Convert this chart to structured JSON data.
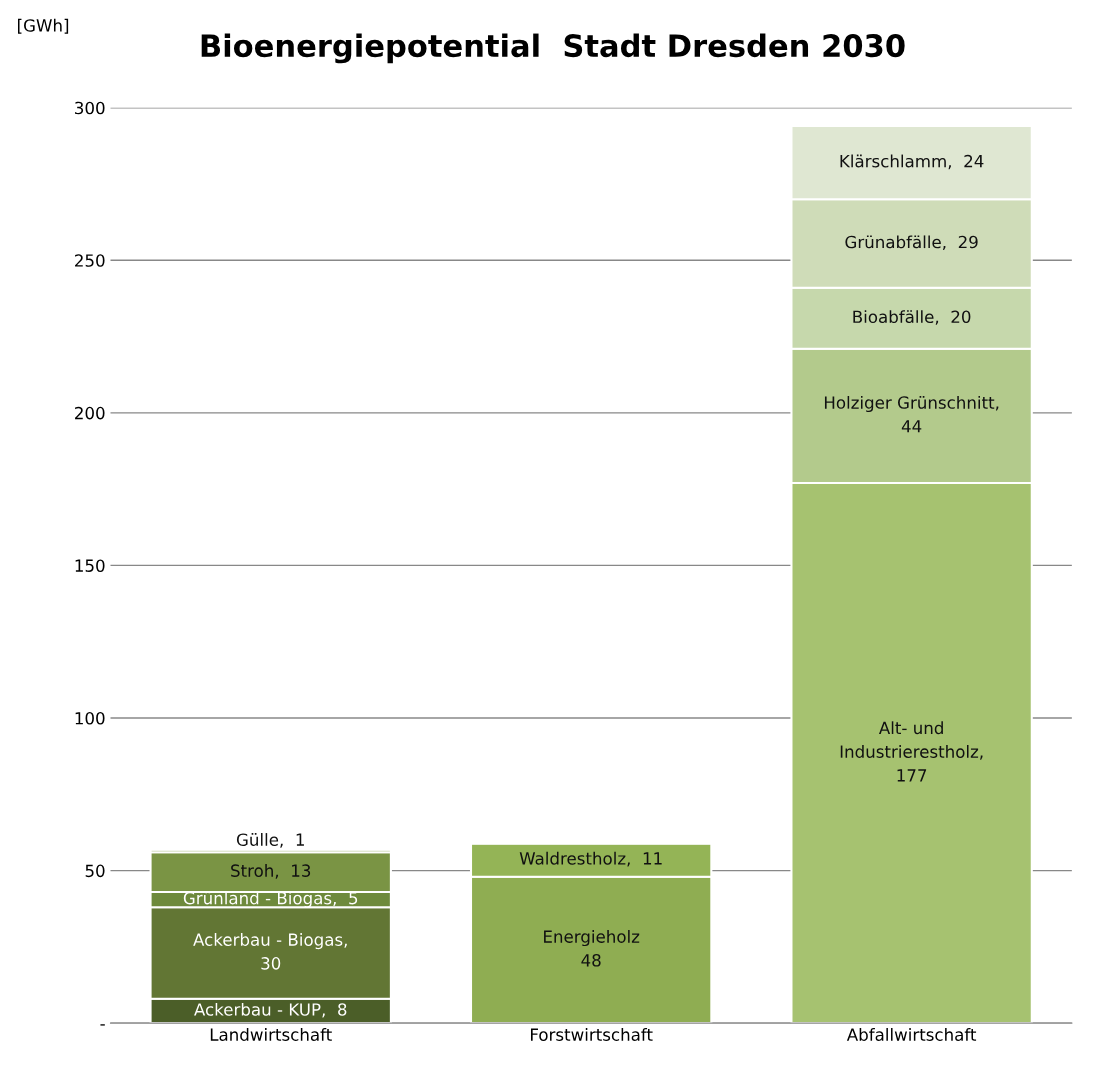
{
  "chart_data": {
    "type": "bar",
    "stacked": true,
    "title": "Bioenergiepotential  Stadt Dresden 2030",
    "ylabel": "[GWh]",
    "categories": [
      "Landwirtschaft",
      "Forstwirtschaft",
      "Abfallwirtschaft"
    ],
    "ylim": [
      0,
      300
    ],
    "yticks": [
      {
        "value": 0,
        "label": "-"
      },
      50,
      100,
      150,
      200,
      250,
      300
    ],
    "grid": "y",
    "series": [
      {
        "color": "#4b5e28",
        "values": [
          8,
          null,
          null
        ],
        "value_labels": [
          "Ackerbau - KUP,  8",
          null,
          null
        ]
      },
      {
        "color": "#627634",
        "values": [
          30,
          null,
          null
        ],
        "value_labels": [
          "Ackerbau - Biogas,\n30",
          null,
          null
        ]
      },
      {
        "color": "#6e8a3c",
        "values": [
          5,
          null,
          null
        ],
        "value_labels": [
          "Grünland - Biogas,  5",
          null,
          null
        ]
      },
      {
        "color": "#7a9444",
        "values": [
          13,
          null,
          null
        ],
        "value_labels": [
          "Stroh,  13",
          null,
          null
        ]
      },
      {
        "color": "#86a24c",
        "values": [
          1,
          null,
          null
        ],
        "value_labels": [
          "Gülle,  1",
          null,
          null
        ]
      },
      {
        "color": "#8fad52",
        "values": [
          null,
          48,
          null
        ],
        "value_labels": [
          null,
          "Energieholz\n48",
          null
        ]
      },
      {
        "color": "#94b456",
        "values": [
          null,
          11,
          null
        ],
        "value_labels": [
          null,
          "Waldrestholz,  11",
          null
        ]
      },
      {
        "color": "#a6c270",
        "values": [
          null,
          null,
          177
        ],
        "value_labels": [
          null,
          null,
          "Alt- und\nIndustrierestholz,\n177"
        ]
      },
      {
        "color": "#b3ca8c",
        "values": [
          null,
          null,
          44
        ],
        "value_labels": [
          null,
          null,
          "Holziger Grünschnitt,\n44"
        ]
      },
      {
        "color": "#c6d8ac",
        "values": [
          null,
          null,
          20
        ],
        "value_labels": [
          null,
          null,
          "Bioabfälle,  20"
        ]
      },
      {
        "color": "#cfdcb8",
        "values": [
          null,
          null,
          29
        ],
        "value_labels": [
          null,
          null,
          "Grünabfälle,  29"
        ]
      },
      {
        "color": "#dfe7d2",
        "values": [
          null,
          null,
          24
        ],
        "value_labels": [
          null,
          null,
          "Klärschlamm,  24"
        ]
      }
    ]
  }
}
